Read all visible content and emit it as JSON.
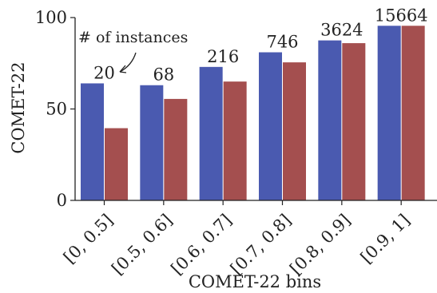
{
  "colors": {
    "series_a": "#4a5ab0",
    "series_b": "#a44f4f"
  },
  "chart_data": {
    "type": "bar",
    "xlabel": "COMET-22 bins",
    "ylabel": "COMET-22",
    "ylim": [
      0,
      100
    ],
    "yticks": [
      "0",
      "50",
      "100"
    ],
    "categories": [
      "[0, 0.5]",
      "[0.5, 0.6]",
      "[0.6, 0.7]",
      "[0.7, 0.8]",
      "[0.8, 0.9]",
      "[0.9, 1]"
    ],
    "series": [
      {
        "values": [
          64,
          63,
          73,
          81,
          87.5,
          95.5
        ]
      },
      {
        "values": [
          39.5,
          55.5,
          65,
          75.5,
          86,
          95.5
        ]
      }
    ],
    "instance_counts": [
      "20",
      "68",
      "216",
      "746",
      "3624",
      "15664"
    ],
    "annotation": "# of instances",
    "grid": false,
    "legend": "none"
  }
}
